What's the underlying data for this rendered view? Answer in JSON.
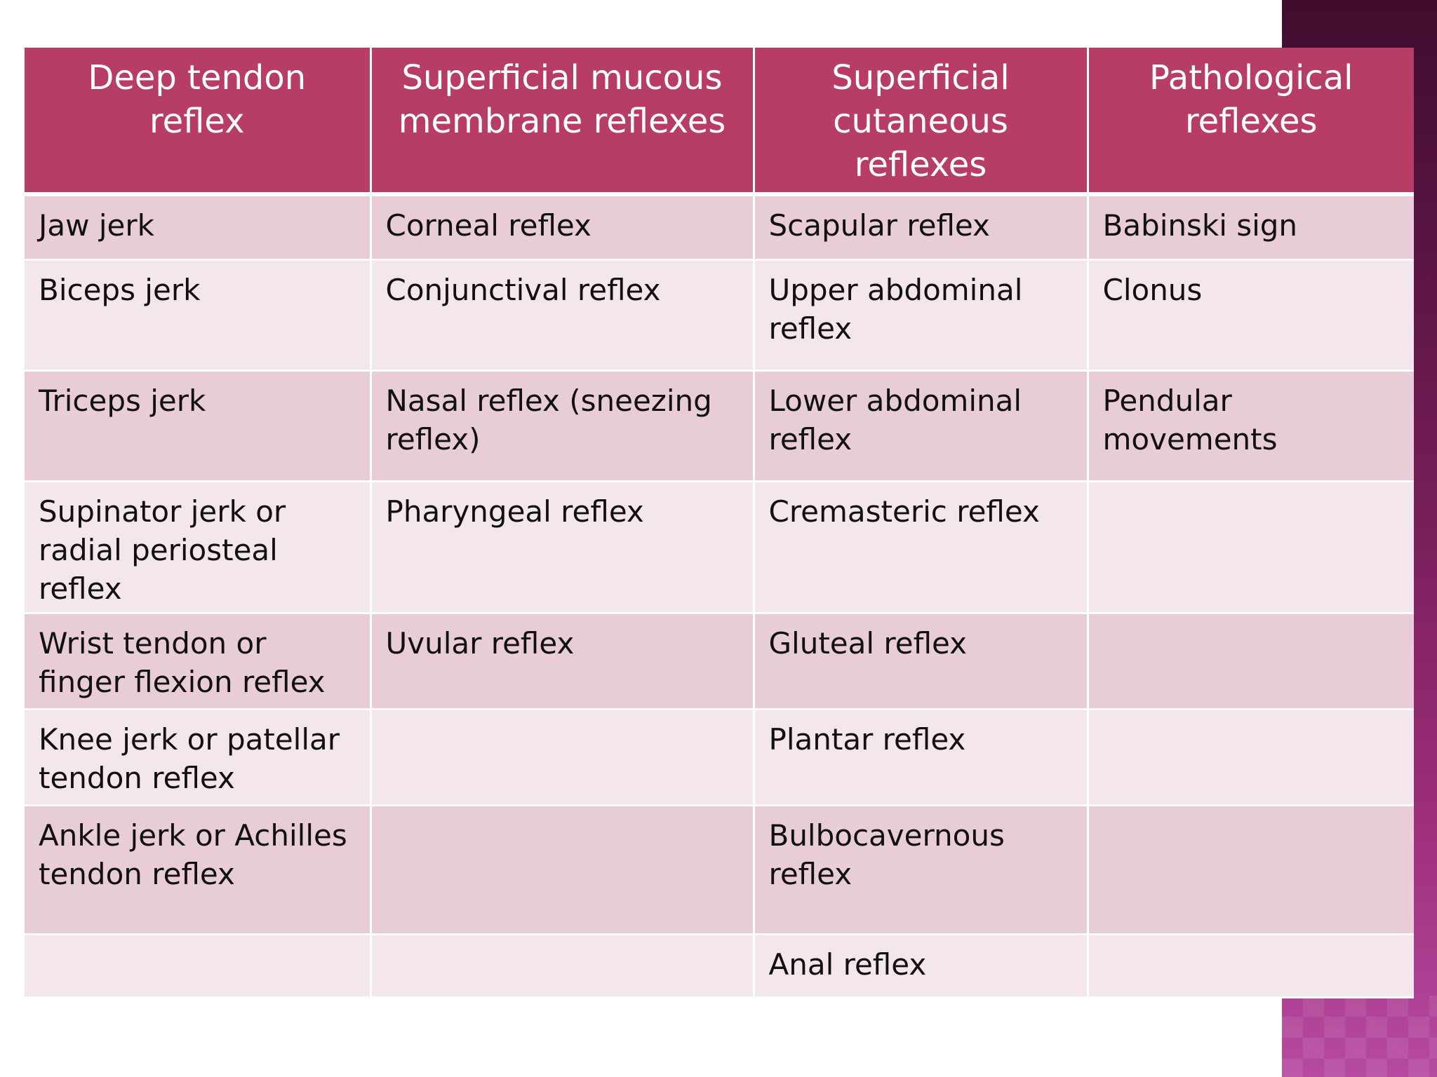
{
  "table": {
    "headers": [
      "Deep tendon reflex",
      "Superficial mucous membrane  reflexes",
      "Superficial cutaneous reflexes",
      "Pathological reflexes"
    ],
    "rows": [
      [
        "Jaw jerk",
        "Corneal reflex",
        "Scapular reflex",
        "Babinski sign"
      ],
      [
        "Biceps jerk",
        "Conjunctival reflex",
        "Upper abdominal reflex",
        "Clonus"
      ],
      [
        "Triceps jerk",
        "Nasal reflex (sneezing reflex)",
        "Lower abdominal reflex",
        "Pendular movements"
      ],
      [
        "Supinator jerk or radial periosteal reflex",
        "Pharyngeal reflex",
        "Cremasteric reflex",
        ""
      ],
      [
        "Wrist tendon or finger flexion reflex",
        "Uvular reflex",
        "Gluteal reflex",
        ""
      ],
      [
        "Knee jerk or patellar tendon reflex",
        "",
        "Plantar reflex",
        ""
      ],
      [
        "Ankle jerk or Achilles tendon reflex",
        "",
        "Bulbocavernous reflex",
        ""
      ],
      [
        "",
        "",
        "Anal reflex",
        ""
      ]
    ]
  },
  "colors": {
    "header_bg": "#b73d64",
    "row_dark": "#e8ccd7",
    "row_light": "#f3e6ec",
    "side_band": "#7a1f5c"
  }
}
